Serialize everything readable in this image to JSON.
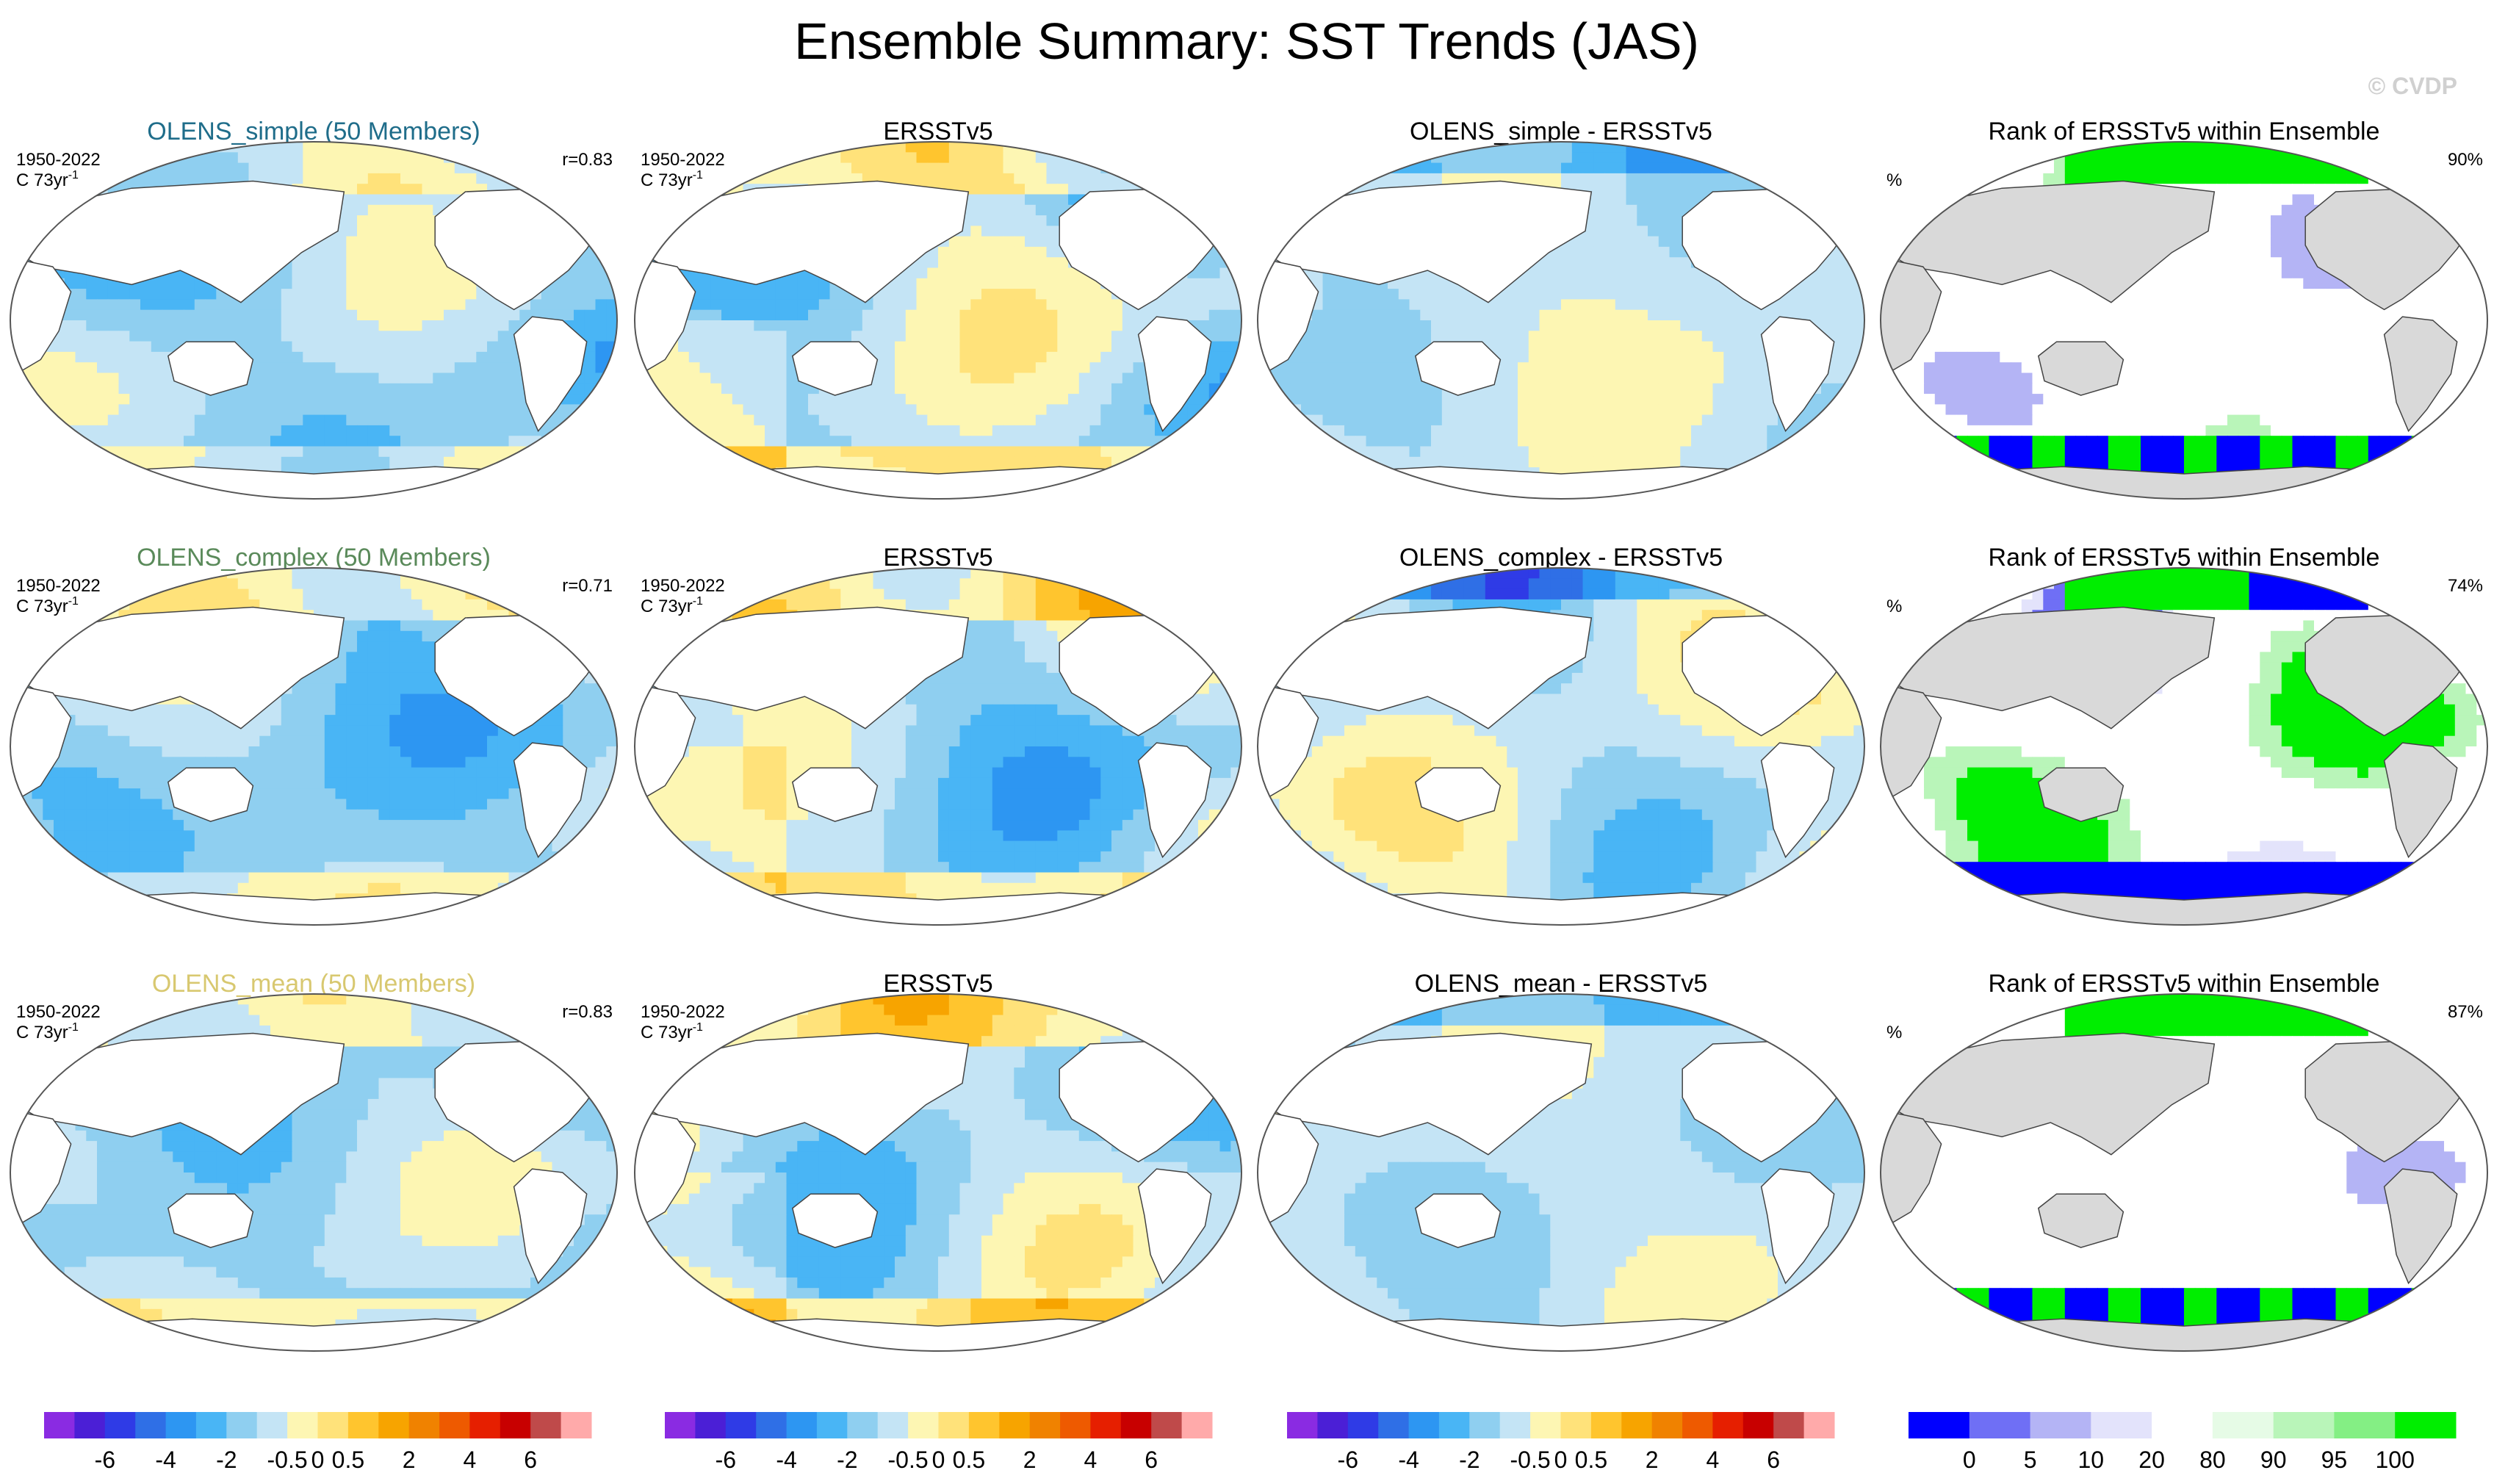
{
  "figure": {
    "title": "Ensemble Summary: SST Trends (JAS)",
    "watermark": "© CVDP"
  },
  "colors": {
    "trend_scale": [
      "#8a2be2",
      "#4b1fd6",
      "#2f3be6",
      "#2f6fe6",
      "#2d96f2",
      "#49b5f5",
      "#8fcff0",
      "#c4e4f5",
      "#fdf6b3",
      "#ffe27a",
      "#ffc52e",
      "#f7a400",
      "#f08200",
      "#ee5a00",
      "#e61f00",
      "#c80000",
      "#bf4a4a",
      "#ffaaaa"
    ],
    "rank_scale": [
      "#0000ff",
      "#6f6ff5",
      "#b4b4f5",
      "#e3e3fb",
      "#ffffff",
      "#e6fbe6",
      "#b9f5b9",
      "#84ef84",
      "#00ee00"
    ],
    "land": "#ffffff",
    "rank_land": "#d9d9d9"
  },
  "chart_data": [
    {
      "type": "heatmap",
      "title": "OLENS_simple (50 Members)",
      "title_color": "#1f6d8a",
      "period": "1950-2022",
      "units": "C 73yr",
      "units_sup": "-1",
      "pattern_corr": "r=0.83",
      "field": "trend_model"
    },
    {
      "type": "heatmap",
      "title": "ERSSTv5",
      "title_color": "#000000",
      "period": "1950-2022",
      "units": "C 73yr",
      "units_sup": "-1",
      "pattern_corr": "",
      "field": "trend_obs"
    },
    {
      "type": "heatmap",
      "title": "OLENS_simple - ERSSTv5",
      "title_color": "#000000",
      "period": "",
      "units": "",
      "units_sup": "",
      "pattern_corr": "",
      "field": "diff_small"
    },
    {
      "type": "heatmap",
      "title": "Rank of ERSSTv5 within Ensemble",
      "title_color": "#000000",
      "period": "",
      "units": "%",
      "units_sup": "",
      "pattern_corr": "90%",
      "field": "rank_low"
    },
    {
      "type": "heatmap",
      "title": "OLENS_complex (50 Members)",
      "title_color": "#5a8a5a",
      "period": "1950-2022",
      "units": "C 73yr",
      "units_sup": "-1",
      "pattern_corr": "r=0.71",
      "field": "trend_model"
    },
    {
      "type": "heatmap",
      "title": "ERSSTv5",
      "title_color": "#000000",
      "period": "1950-2022",
      "units": "C 73yr",
      "units_sup": "-1",
      "pattern_corr": "",
      "field": "trend_obs"
    },
    {
      "type": "heatmap",
      "title": "OLENS_complex - ERSSTv5",
      "title_color": "#000000",
      "period": "",
      "units": "",
      "units_sup": "",
      "pattern_corr": "",
      "field": "diff_large"
    },
    {
      "type": "heatmap",
      "title": "Rank of ERSSTv5 within Ensemble",
      "title_color": "#000000",
      "period": "",
      "units": "%",
      "units_sup": "",
      "pattern_corr": "74%",
      "field": "rank_high"
    },
    {
      "type": "heatmap",
      "title": "OLENS_mean (50 Members)",
      "title_color": "#d8c870",
      "period": "1950-2022",
      "units": "C 73yr",
      "units_sup": "-1",
      "pattern_corr": "r=0.83",
      "field": "trend_model"
    },
    {
      "type": "heatmap",
      "title": "ERSSTv5",
      "title_color": "#000000",
      "period": "1950-2022",
      "units": "C 73yr",
      "units_sup": "-1",
      "pattern_corr": "",
      "field": "trend_obs"
    },
    {
      "type": "heatmap",
      "title": "OLENS_mean - ERSSTv5",
      "title_color": "#000000",
      "period": "",
      "units": "",
      "units_sup": "",
      "pattern_corr": "",
      "field": "diff_small"
    },
    {
      "type": "heatmap",
      "title": "Rank of ERSSTv5 within Ensemble",
      "title_color": "#000000",
      "period": "",
      "units": "%",
      "units_sup": "",
      "pattern_corr": "87%",
      "field": "rank_low"
    }
  ],
  "colorbars": [
    {
      "kind": "trend",
      "labels": [
        "-6",
        "-4",
        "-2",
        "-0.5",
        "0",
        "0.5",
        "2",
        "4",
        "6"
      ]
    },
    {
      "kind": "trend",
      "labels": [
        "-6",
        "-4",
        "-2",
        "-0.5",
        "0",
        "0.5",
        "2",
        "4",
        "6"
      ]
    },
    {
      "kind": "trend",
      "labels": [
        "-6",
        "-4",
        "-2",
        "-0.5",
        "0",
        "0.5",
        "2",
        "4",
        "6"
      ]
    },
    {
      "kind": "rank",
      "labels": [
        "0",
        "5",
        "10",
        "20",
        "80",
        "90",
        "95",
        "100"
      ]
    }
  ]
}
